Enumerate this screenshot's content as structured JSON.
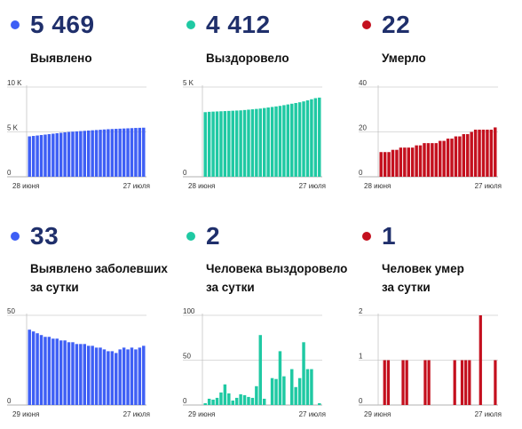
{
  "panels": [
    {
      "number": "5 469",
      "color": "#3e5ff5",
      "label_lines": [
        "Выявлено",
        ""
      ],
      "x_start": "28 июня",
      "x_end": "27 июля",
      "chart_data": {
        "type": "bar",
        "ylim": [
          0,
          10000
        ],
        "yticks": [
          {
            "value": 0,
            "label": "0"
          },
          {
            "value": 5000,
            "label": "5 K"
          },
          {
            "value": 10000,
            "label": "10 K"
          }
        ],
        "values": [
          4500,
          4550,
          4600,
          4650,
          4700,
          4750,
          4800,
          4850,
          4900,
          4950,
          5000,
          5030,
          5060,
          5090,
          5120,
          5150,
          5180,
          5210,
          5240,
          5270,
          5300,
          5320,
          5340,
          5360,
          5380,
          5400,
          5420,
          5440,
          5455,
          5469
        ]
      }
    },
    {
      "number": "4 412",
      "color": "#1fc9a3",
      "label_lines": [
        "Выздоровело",
        ""
      ],
      "x_start": "28 июня",
      "x_end": "27 июля",
      "chart_data": {
        "type": "bar",
        "ylim": [
          0,
          5000
        ],
        "yticks": [
          {
            "value": 0,
            "label": "0"
          },
          {
            "value": 5000,
            "label": "5 K"
          }
        ],
        "values": [
          3600,
          3620,
          3630,
          3640,
          3650,
          3660,
          3670,
          3680,
          3690,
          3700,
          3720,
          3740,
          3760,
          3780,
          3800,
          3830,
          3860,
          3890,
          3920,
          3950,
          3990,
          4030,
          4070,
          4110,
          4150,
          4200,
          4260,
          4320,
          4380,
          4412
        ]
      }
    },
    {
      "number": "22",
      "color": "#c4101e",
      "label_lines": [
        "Умерло",
        ""
      ],
      "x_start": "28 июня",
      "x_end": "27 июля",
      "chart_data": {
        "type": "bar",
        "ylim": [
          0,
          40
        ],
        "yticks": [
          {
            "value": 0,
            "label": "0"
          },
          {
            "value": 20,
            "label": "20"
          },
          {
            "value": 40,
            "label": "40"
          }
        ],
        "values": [
          11,
          11,
          11,
          12,
          12,
          13,
          13,
          13,
          13,
          14,
          14,
          15,
          15,
          15,
          15,
          16,
          16,
          17,
          17,
          18,
          18,
          19,
          19,
          20,
          21,
          21,
          21,
          21,
          21,
          22
        ]
      }
    },
    {
      "number": "33",
      "color": "#3e5ff5",
      "label_lines": [
        "Выявлено заболевших",
        "за сутки"
      ],
      "x_start": "29 июня",
      "x_end": "27 июля",
      "chart_data": {
        "type": "bar",
        "ylim": [
          0,
          50
        ],
        "yticks": [
          {
            "value": 0,
            "label": "0"
          },
          {
            "value": 50,
            "label": "50"
          }
        ],
        "values": [
          42,
          41,
          40,
          39,
          38,
          38,
          37,
          37,
          36,
          36,
          35,
          35,
          34,
          34,
          34,
          33,
          33,
          32,
          32,
          31,
          30,
          30,
          29,
          31,
          32,
          31,
          32,
          31,
          32,
          33
        ]
      }
    },
    {
      "number": "2",
      "color": "#1fc9a3",
      "label_lines": [
        "Человека выздоровело",
        "за сутки"
      ],
      "x_start": "29 июня",
      "x_end": "27 июля",
      "chart_data": {
        "type": "bar",
        "ylim": [
          0,
          100
        ],
        "yticks": [
          {
            "value": 0,
            "label": "0"
          },
          {
            "value": 50,
            "label": "50"
          },
          {
            "value": 100,
            "label": "100"
          }
        ],
        "values": [
          2,
          7,
          6,
          8,
          14,
          23,
          13,
          5,
          8,
          12,
          11,
          9,
          8,
          21,
          78,
          7,
          0,
          30,
          29,
          60,
          32,
          0,
          40,
          20,
          30,
          70,
          40,
          40,
          0,
          2
        ]
      }
    },
    {
      "number": "1",
      "color": "#c4101e",
      "label_lines": [
        "Человек умер",
        "за сутки"
      ],
      "x_start": "29 июня",
      "x_end": "27 июля",
      "chart_data": {
        "type": "bar",
        "ylim": [
          0,
          2
        ],
        "yticks": [
          {
            "value": 0,
            "label": "0"
          },
          {
            "value": 1,
            "label": "1"
          },
          {
            "value": 2,
            "label": "2"
          }
        ],
        "values": [
          0,
          1,
          1,
          0,
          0,
          0,
          1,
          1,
          0,
          0,
          0,
          0,
          1,
          1,
          0,
          0,
          0,
          0,
          0,
          0,
          1,
          0,
          1,
          1,
          1,
          0,
          0,
          2,
          0,
          0,
          0,
          1
        ]
      }
    }
  ]
}
